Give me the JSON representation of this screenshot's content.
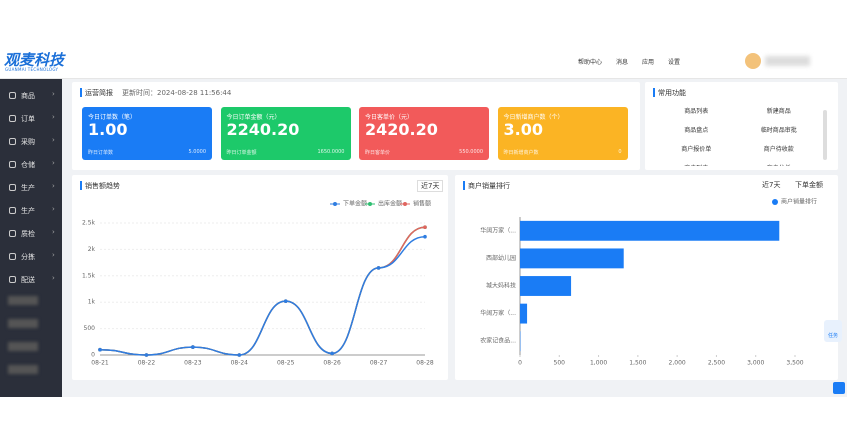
{
  "header": {
    "logo": "观麦科技",
    "logo_sub": "GUANMAI TECHNOLOGY",
    "nav": [
      "帮助中心",
      "消息",
      "应用",
      "设置"
    ]
  },
  "sidebar": [
    "商品",
    "订单",
    "采购",
    "仓储",
    "生产",
    "生产",
    "质检",
    "分拣",
    "配送"
  ],
  "brief": {
    "title": "运营简报",
    "updated": "更新时间：2024-08-28 11:56:44",
    "cards": [
      {
        "label": "今日订单数（笔）",
        "value": "1.00",
        "sub_label": "昨日订单数",
        "sub_value": "5.0000",
        "color": "#1a7cf5"
      },
      {
        "label": "今日订单金额（元）",
        "value": "2240.20",
        "sub_label": "昨日订单金额",
        "sub_value": "1650.0000",
        "color": "#1dc96a"
      },
      {
        "label": "今日客单价（元）",
        "value": "2420.20",
        "sub_label": "昨日客单价",
        "sub_value": "550.0000",
        "color": "#f25a5a"
      },
      {
        "label": "今日新增商户数（个）",
        "value": "3.00",
        "sub_label": "昨日新增商户数",
        "sub_value": "0",
        "color": "#fbb424"
      }
    ]
  },
  "functions": {
    "title": "常用功能",
    "items": [
      "商品列表",
      "新建商品",
      "商品盘点",
      "临时商品审批",
      "商户报价单",
      "商户待收款",
      "商户列表",
      "商户分析"
    ]
  },
  "float_button": "任务",
  "chart_data": [
    {
      "type": "line",
      "title": "销售额趋势",
      "range": "近7天",
      "categories": [
        "08-21",
        "08-22",
        "08-23",
        "08-24",
        "08-25",
        "08-26",
        "08-27",
        "08-28"
      ],
      "series": [
        {
          "name": "下单金额",
          "color": "#2f7de1",
          "values": [
            100,
            0,
            150,
            0,
            1020,
            30,
            1650,
            2240
          ]
        },
        {
          "name": "出库金额",
          "color": "#2fbf71",
          "values": [
            100,
            0,
            150,
            0,
            1020,
            30,
            1650,
            2420
          ]
        },
        {
          "name": "销售额",
          "color": "#e0655f",
          "values": [
            100,
            0,
            150,
            0,
            1020,
            30,
            1650,
            2420
          ]
        }
      ],
      "ylim": [
        0,
        2500
      ],
      "yticks": [
        0,
        500,
        {
          "value": 1000,
          "label": "1k"
        },
        {
          "value": 1500,
          "label": "1.5k"
        },
        {
          "value": 2000,
          "label": "2k"
        },
        {
          "value": 2500,
          "label": "2.5k"
        }
      ],
      "grid": true
    },
    {
      "type": "bar",
      "orientation": "horizontal",
      "title": "商户销量排行",
      "range": "近7天",
      "metric": "下单金额",
      "categories": [
        "华阔万家（...",
        "西部幼儿园",
        "城大妈科技",
        "华阔万家（...",
        "农家记食品..."
      ],
      "series": [
        {
          "name": "商户销量排行",
          "color": "#1a7cf5",
          "values": [
            3300,
            1320,
            650,
            90,
            5
          ]
        }
      ],
      "xlim": [
        0,
        3500
      ],
      "xticks": [
        0,
        500,
        {
          "value": 1000,
          "label": "1,000"
        },
        {
          "value": 1500,
          "label": "1,500"
        },
        {
          "value": 2000,
          "label": "2,000"
        },
        {
          "value": 2500,
          "label": "2,500"
        },
        {
          "value": 3000,
          "label": "3,000"
        },
        {
          "value": 3500,
          "label": "3,500"
        }
      ],
      "grid": false
    }
  ]
}
